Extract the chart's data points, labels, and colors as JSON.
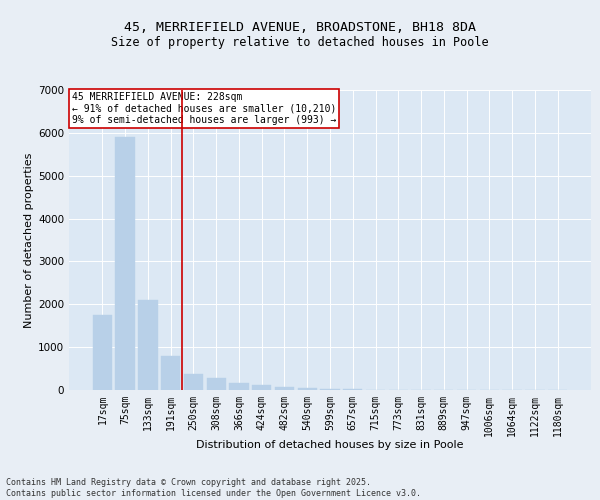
{
  "title_line1": "45, MERRIEFIELD AVENUE, BROADSTONE, BH18 8DA",
  "title_line2": "Size of property relative to detached houses in Poole",
  "xlabel": "Distribution of detached houses by size in Poole",
  "ylabel": "Number of detached properties",
  "bar_color": "#b8d0e8",
  "vline_color": "#cc0000",
  "vline_x_index": 3.5,
  "categories": [
    "17sqm",
    "75sqm",
    "133sqm",
    "191sqm",
    "250sqm",
    "308sqm",
    "366sqm",
    "424sqm",
    "482sqm",
    "540sqm",
    "599sqm",
    "657sqm",
    "715sqm",
    "773sqm",
    "831sqm",
    "889sqm",
    "947sqm",
    "1006sqm",
    "1064sqm",
    "1122sqm",
    "1180sqm"
  ],
  "values": [
    1750,
    5900,
    2100,
    800,
    370,
    280,
    160,
    110,
    65,
    45,
    28,
    14,
    9,
    5,
    3,
    2,
    1,
    1,
    0,
    0,
    0
  ],
  "ylim": [
    0,
    7000
  ],
  "yticks": [
    0,
    1000,
    2000,
    3000,
    4000,
    5000,
    6000,
    7000
  ],
  "annotation_title": "45 MERRIEFIELD AVENUE: 228sqm",
  "annotation_line1": "← 91% of detached houses are smaller (10,210)",
  "annotation_line2": "9% of semi-detached houses are larger (993) →",
  "footer_line1": "Contains HM Land Registry data © Crown copyright and database right 2025.",
  "footer_line2": "Contains public sector information licensed under the Open Government Licence v3.0.",
  "background_color": "#e8eef5",
  "plot_bg_color": "#dce8f4",
  "grid_color": "#ffffff",
  "title_fontsize": 9.5,
  "subtitle_fontsize": 8.5,
  "axis_label_fontsize": 8,
  "tick_fontsize": 7,
  "annotation_fontsize": 7,
  "footer_fontsize": 6,
  "annotation_box_edgecolor": "#cc0000",
  "annotation_box_facecolor": "#ffffff"
}
